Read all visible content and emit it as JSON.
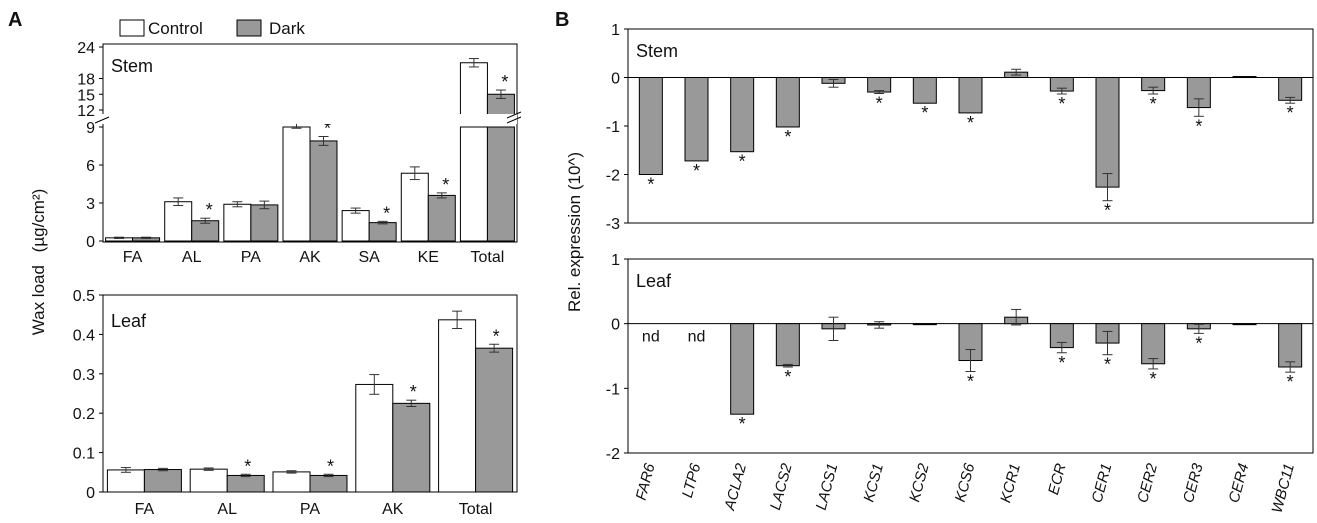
{
  "figure": {
    "colors": {
      "control": "#ffffff",
      "dark": "#999999",
      "axis": "#000000",
      "errorbar": "#333333"
    }
  },
  "panelA": {
    "label": "A",
    "ylabel": "Wax load",
    "yunit": "(µg/cm²)",
    "legend": {
      "items": [
        "Control",
        "Dark"
      ]
    }
  },
  "panelB": {
    "label": "B",
    "ylabel": "Rel. expression (10^)"
  },
  "chart_data": [
    {
      "id": "stem_wax",
      "type": "bar",
      "panel": "A",
      "title": "Stem",
      "categories": [
        "FA",
        "AL",
        "PA",
        "AK",
        "SA",
        "KE",
        "Total"
      ],
      "series": [
        {
          "name": "Control",
          "values": [
            0.25,
            3.1,
            2.9,
            9.8,
            2.4,
            5.35,
            21.0
          ],
          "errors": [
            0.05,
            0.3,
            0.2,
            0.9,
            0.2,
            0.5,
            0.8
          ]
        },
        {
          "name": "Dark",
          "values": [
            0.25,
            1.6,
            2.85,
            7.9,
            1.45,
            3.6,
            15.0
          ],
          "errors": [
            0.05,
            0.2,
            0.3,
            0.35,
            0.1,
            0.2,
            0.8
          ]
        }
      ],
      "significant_dark": [
        false,
        true,
        false,
        true,
        true,
        true,
        true
      ],
      "lower_axis": {
        "ylim": [
          0,
          9
        ],
        "ticks": [
          0,
          3,
          6,
          9
        ]
      },
      "upper_axis": {
        "ylim": [
          12,
          24
        ],
        "ticks": [
          12,
          15,
          18,
          24
        ]
      },
      "axis_break": true,
      "legend": "top-left"
    },
    {
      "id": "leaf_wax",
      "type": "bar",
      "panel": "A",
      "title": "Leaf",
      "categories": [
        "FA",
        "AL",
        "PA",
        "AK",
        "Total"
      ],
      "series": [
        {
          "name": "Control",
          "values": [
            0.056,
            0.058,
            0.051,
            0.273,
            0.437
          ],
          "errors": [
            0.006,
            0.003,
            0.003,
            0.025,
            0.022
          ]
        },
        {
          "name": "Dark",
          "values": [
            0.057,
            0.042,
            0.042,
            0.225,
            0.365
          ],
          "errors": [
            0.003,
            0.003,
            0.003,
            0.008,
            0.01
          ]
        }
      ],
      "significant_dark": [
        false,
        true,
        true,
        true,
        true
      ],
      "ylim": [
        0,
        0.5
      ],
      "yticks": [
        "0",
        "0.1",
        "0.2",
        "0.3",
        "0.4",
        "0.5"
      ]
    },
    {
      "id": "stem_expression",
      "type": "bar",
      "panel": "B",
      "title": "Stem",
      "categories": [
        "FAR6",
        "LTP6",
        "ACLA2",
        "LACS2",
        "LACS1",
        "KCS1",
        "KCS2",
        "KCS6",
        "KCR1",
        "ECR",
        "CER1",
        "CER2",
        "CER3",
        "CER4",
        "WBC11"
      ],
      "values": [
        -2.0,
        -1.72,
        -1.53,
        -1.02,
        -0.12,
        -0.3,
        -0.53,
        -0.73,
        0.11,
        -0.28,
        -2.26,
        -0.27,
        -0.62,
        0.02,
        -0.47
      ],
      "errors": [
        0.0,
        0.0,
        0.0,
        0.0,
        0.08,
        0.03,
        0.0,
        0.0,
        0.06,
        0.06,
        0.28,
        0.07,
        0.18,
        0.0,
        0.06
      ],
      "significant": [
        true,
        true,
        true,
        true,
        false,
        true,
        true,
        true,
        false,
        true,
        true,
        true,
        true,
        false,
        true
      ],
      "ylim": [
        -3,
        1
      ],
      "yticks": [
        "-3",
        "-2",
        "-1",
        "0",
        "1"
      ]
    },
    {
      "id": "leaf_expression",
      "type": "bar",
      "panel": "B",
      "title": "Leaf",
      "categories": [
        "FAR6",
        "LTP6",
        "ACLA2",
        "LACS2",
        "LACS1",
        "KCS1",
        "KCS2",
        "KCS6",
        "KCR1",
        "ECR",
        "CER1",
        "CER2",
        "CER3",
        "CER4",
        "WBC11"
      ],
      "values": [
        null,
        null,
        -1.4,
        -0.65,
        -0.08,
        -0.02,
        0.0,
        -0.57,
        0.1,
        -0.37,
        -0.3,
        -0.62,
        -0.08,
        0.0,
        -0.67
      ],
      "errors": [
        0,
        0,
        0.0,
        0.02,
        0.18,
        0.05,
        0.0,
        0.17,
        0.12,
        0.08,
        0.18,
        0.08,
        0.07,
        0.0,
        0.08
      ],
      "significant": [
        false,
        false,
        true,
        true,
        false,
        false,
        false,
        true,
        false,
        true,
        true,
        true,
        true,
        false,
        true
      ],
      "annotations": [
        "nd",
        "nd",
        "",
        "",
        "",
        "",
        "",
        "",
        "",
        "",
        "",
        "",
        "",
        "",
        ""
      ],
      "ylim": [
        -2,
        1
      ],
      "yticks": [
        "-2",
        "-1",
        "0",
        "1"
      ]
    }
  ]
}
